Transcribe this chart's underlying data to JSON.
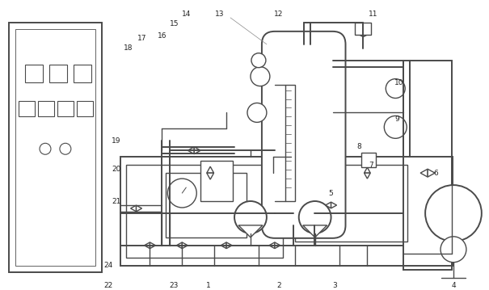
{
  "background": "#ffffff",
  "line_color": "#4a4a4a",
  "text_color": "#222222",
  "figsize": [
    6.05,
    3.59
  ],
  "dpi": 100
}
